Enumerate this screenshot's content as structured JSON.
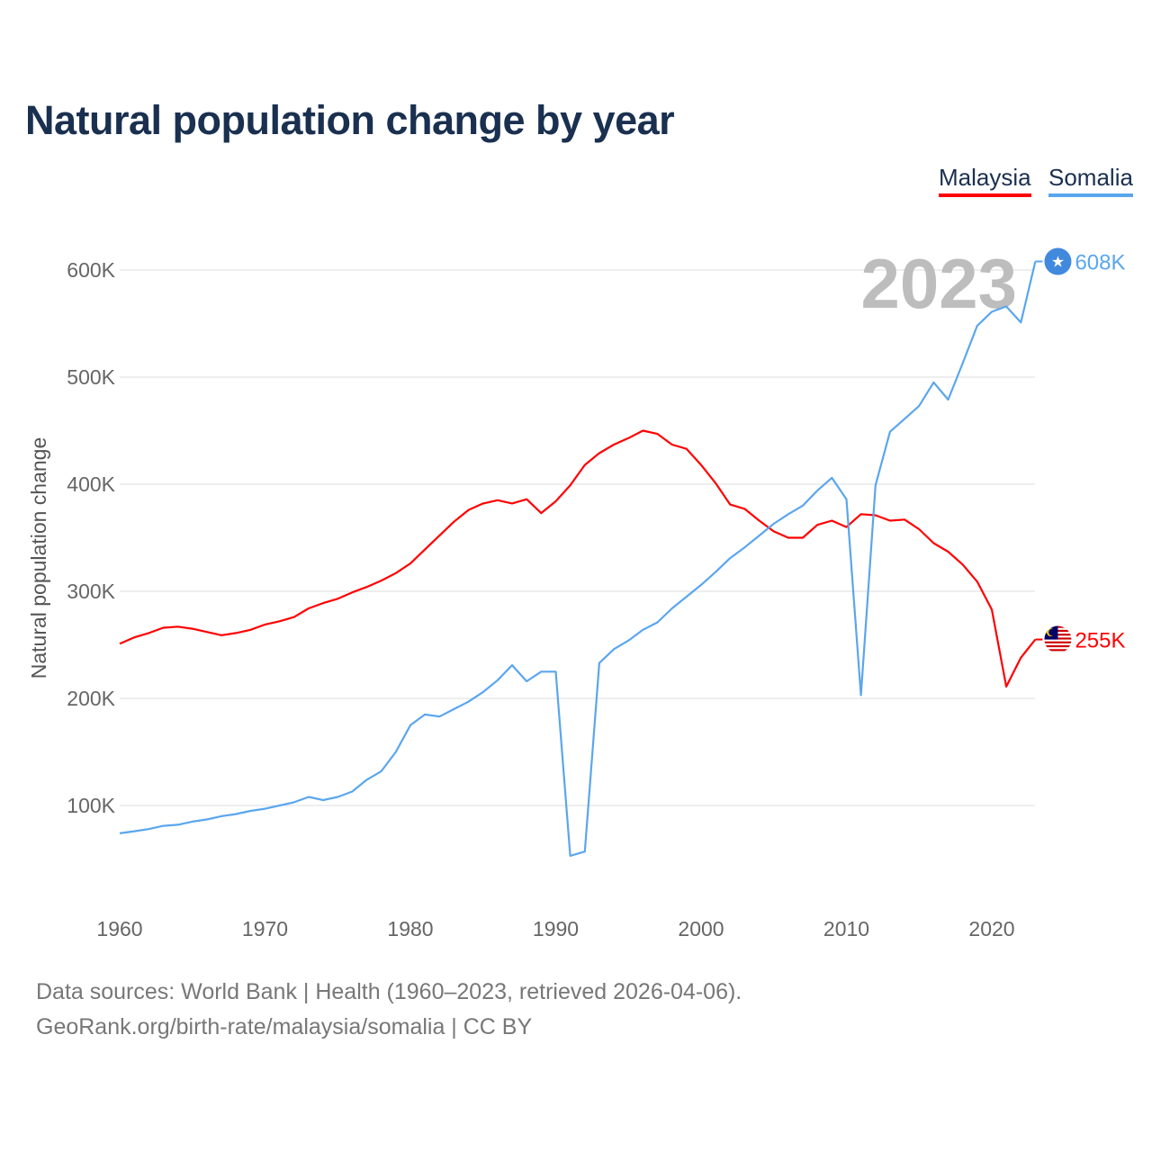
{
  "title": "Natural population change by year",
  "legend": {
    "malaysia": "Malaysia",
    "somalia": "Somalia"
  },
  "sources": {
    "line1": "Data sources: World Bank | Health (1960–2023, retrieved 2026-04-06).",
    "line2": "GeoRank.org/birth-rate/malaysia/somalia | CC BY"
  },
  "chart_data": {
    "type": "line",
    "title": "Natural population change by year",
    "xlabel": "",
    "ylabel": "Natural population change",
    "year_label": "2023",
    "xlim": [
      1960,
      2023
    ],
    "ylim": [
      0,
      650000
    ],
    "x_ticks": [
      1960,
      1970,
      1980,
      1990,
      2000,
      2010,
      2020
    ],
    "y_ticks": [
      100000,
      200000,
      300000,
      400000,
      500000,
      600000
    ],
    "y_tick_labels": [
      "100K",
      "200K",
      "300K",
      "400K",
      "500K",
      "600K"
    ],
    "legend_position": "top-right",
    "grid": true,
    "x": [
      1960,
      1961,
      1962,
      1963,
      1964,
      1965,
      1966,
      1967,
      1968,
      1969,
      1970,
      1971,
      1972,
      1973,
      1974,
      1975,
      1976,
      1977,
      1978,
      1979,
      1980,
      1981,
      1982,
      1983,
      1984,
      1985,
      1986,
      1987,
      1988,
      1989,
      1990,
      1991,
      1992,
      1993,
      1994,
      1995,
      1996,
      1997,
      1998,
      1999,
      2000,
      2001,
      2002,
      2003,
      2004,
      2005,
      2006,
      2007,
      2008,
      2009,
      2010,
      2011,
      2012,
      2013,
      2014,
      2015,
      2016,
      2017,
      2018,
      2019,
      2020,
      2021,
      2022,
      2023
    ],
    "series": [
      {
        "name": "Malaysia",
        "color": "#ff0000",
        "end_label": "255K",
        "icon": "malaysia-flag-icon",
        "values": [
          251000,
          257000,
          261000,
          266000,
          267000,
          265000,
          262000,
          259000,
          261000,
          264000,
          269000,
          272000,
          276000,
          284000,
          289000,
          293000,
          299000,
          304000,
          310000,
          317000,
          326000,
          339000,
          352000,
          365000,
          376000,
          382000,
          385000,
          382000,
          386000,
          373000,
          384000,
          399000,
          418000,
          429000,
          437000,
          443000,
          450000,
          447000,
          437000,
          433000,
          418000,
          401000,
          381000,
          377000,
          366000,
          356000,
          350000,
          350000,
          362000,
          366000,
          360000,
          372000,
          371000,
          366000,
          367000,
          358000,
          345000,
          337000,
          325000,
          309000,
          283000,
          211000,
          238000,
          255000
        ]
      },
      {
        "name": "Somalia",
        "color": "#5aa6ee",
        "end_label": "608K",
        "icon": "somalia-flag-icon",
        "values": [
          74000,
          76000,
          78000,
          81000,
          82000,
          85000,
          87000,
          90000,
          92000,
          95000,
          97000,
          100000,
          103000,
          108000,
          105000,
          108000,
          113000,
          124000,
          132000,
          150000,
          175000,
          185000,
          183000,
          190000,
          197000,
          206000,
          217000,
          231000,
          216000,
          225000,
          225000,
          53000,
          57000,
          233000,
          246000,
          254000,
          264000,
          271000,
          284000,
          295000,
          306000,
          318000,
          331000,
          341000,
          352000,
          363000,
          372000,
          380000,
          394000,
          406000,
          386000,
          203000,
          399000,
          449000,
          461000,
          473000,
          495000,
          479000,
          513000,
          548000,
          561000,
          566000,
          551000,
          608000
        ]
      }
    ]
  }
}
